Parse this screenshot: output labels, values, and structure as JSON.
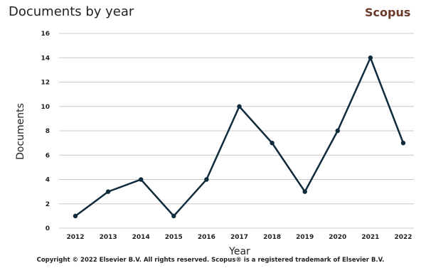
{
  "header": {
    "title": "Documents by year",
    "brand": "Scopus"
  },
  "footer": {
    "copyright": "Copyright © 2022 Elsevier B.V. All rights reserved. Scopus® is a registered trademark of Elsevier B.V."
  },
  "colors": {
    "line": "#0f2b3c",
    "grid": "#c8c8c8",
    "brand": "#6b3a2a"
  },
  "chart_data": {
    "type": "line",
    "title": "Documents by year",
    "xlabel": "Year",
    "ylabel": "Documents",
    "categories": [
      "2012",
      "2013",
      "2014",
      "2015",
      "2016",
      "2017",
      "2018",
      "2019",
      "2020",
      "2021",
      "2022"
    ],
    "values": [
      1,
      3,
      4,
      1,
      4,
      10,
      7,
      3,
      8,
      14,
      7
    ],
    "ylim": [
      0,
      16
    ],
    "yticks": [
      "0",
      "2",
      "4",
      "6",
      "8",
      "10",
      "12",
      "14",
      "16"
    ],
    "grid": true
  }
}
